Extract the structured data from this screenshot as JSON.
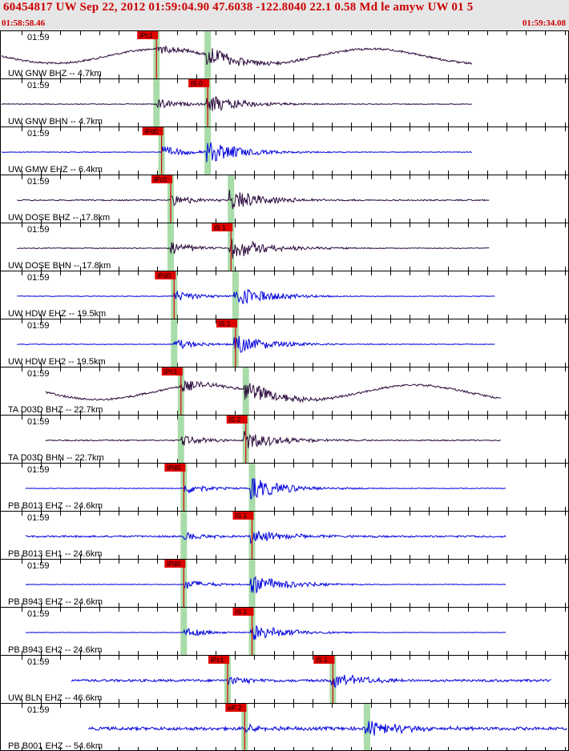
{
  "header": {
    "title": "60454817 UW Sep 22, 2012 01:59:04.90   47.6038 -122.8040 22.1 0.58 Md le amyw UW 01    5",
    "start_time": "01:58:58.46",
    "end_time": "01:59:34.08"
  },
  "colors": {
    "header_bg": "#e6e6e6",
    "title": "#cc0000",
    "trace_dark": "#2b0a3d",
    "trace_blue": "#0000dd",
    "pick": "#dd0000",
    "window": "#a8dca8"
  },
  "panels": [
    {
      "time": "01:59",
      "label": "UW GNW BHZ -- 4.7km",
      "color": "dark",
      "arrival": 0.6,
      "amp": 0.55,
      "noise": 0.25,
      "long_wave": true,
      "trace_start": 0.0,
      "trace_end": 0.83,
      "pick": "iPc1",
      "pick_pos": 0.58,
      "win": [
        0.275,
        0.365
      ]
    },
    {
      "time": "01:59",
      "label": "UW GNW BHN -- 4.7km",
      "color": "dark",
      "arrival": 0.61,
      "amp": 0.55,
      "noise": 0.1,
      "long_wave": false,
      "trace_start": 0.0,
      "trace_end": 0.83,
      "pick": "iS 0",
      "pick_pos": 0.65,
      "win": [
        0.275,
        0.365
      ]
    },
    {
      "time": "01:59",
      "label": "UW GMW EHZ -- 6.4km",
      "color": "blue",
      "arrival": 0.61,
      "amp": 0.65,
      "noise": 0.08,
      "long_wave": false,
      "trace_start": 0.0,
      "trace_end": 0.83,
      "pick": "iPd0",
      "pick_pos": 0.57,
      "win": [
        0.284,
        0.365
      ]
    },
    {
      "time": "01:59",
      "label": "UW DOSE BHZ -- 17.8km",
      "color": "dark",
      "arrival": 0.7,
      "amp": 0.6,
      "noise": 0.15,
      "long_wave": false,
      "trace_start": 0.03,
      "trace_end": 0.86,
      "pick": "iPc0",
      "pick_pos": 0.56,
      "win": [
        0.3,
        0.406
      ]
    },
    {
      "time": "01:59",
      "label": "UW DOSE BHN -- 17.8km",
      "color": "dark",
      "arrival": 0.7,
      "amp": 0.65,
      "noise": 0.1,
      "long_wave": false,
      "trace_start": 0.03,
      "trace_end": 0.86,
      "pick": "iS 1",
      "pick_pos": 0.7,
      "win": [
        0.3,
        0.406
      ]
    },
    {
      "time": "01:59",
      "label": "UW HDW EHZ -- 19.5km",
      "color": "blue",
      "arrival": 0.73,
      "amp": 0.6,
      "noise": 0.08,
      "long_wave": false,
      "trace_start": 0.03,
      "trace_end": 0.87,
      "pick": "iPd0",
      "pick_pos": 0.58,
      "win": [
        0.306,
        0.414
      ]
    },
    {
      "time": "01:59",
      "label": "UW HDW EH2 -- 19.5km",
      "color": "blue",
      "arrival": 0.73,
      "amp": 0.55,
      "noise": 0.08,
      "long_wave": false,
      "trace_start": 0.03,
      "trace_end": 0.87,
      "pick": "iS 1",
      "pick_pos": 0.72,
      "win": [
        0.306,
        0.414
      ]
    },
    {
      "time": "01:59",
      "label": "TA D03D BHZ -- 22.7km",
      "color": "dark",
      "arrival": 0.75,
      "amp": 0.6,
      "noise": 0.25,
      "long_wave": true,
      "trace_start": 0.08,
      "trace_end": 0.88,
      "pick": "iPc1",
      "pick_pos": 0.59,
      "win": [
        0.318,
        0.432
      ]
    },
    {
      "time": "01:59",
      "label": "TA D03D BHN -- 22.7km",
      "color": "dark",
      "arrival": 0.75,
      "amp": 0.55,
      "noise": 0.15,
      "long_wave": false,
      "trace_start": 0.08,
      "trace_end": 0.88,
      "pick": "iS 2",
      "pick_pos": 0.73,
      "win": [
        0.318,
        0.432
      ]
    },
    {
      "time": "01:59",
      "label": "PB B013 EHZ -- 24.6km",
      "color": "blue",
      "arrival": 0.77,
      "amp": 0.6,
      "noise": 0.08,
      "long_wave": false,
      "trace_start": 0.045,
      "trace_end": 0.89,
      "pick": "iPd0",
      "pick_pos": 0.59,
      "win": [
        0.323,
        0.443
      ]
    },
    {
      "time": "01:59",
      "label": "PB B013 EH1 -- 24.6km",
      "color": "blue",
      "arrival": 0.77,
      "amp": 0.4,
      "noise": 0.22,
      "long_wave": false,
      "trace_start": 0.045,
      "trace_end": 0.89,
      "pick": "iS 1",
      "pick_pos": 0.74,
      "win": [
        0.323,
        0.443
      ]
    },
    {
      "time": "01:59",
      "label": "PB B943 EHZ -- 24.6km",
      "color": "blue",
      "arrival": 0.77,
      "amp": 0.55,
      "noise": 0.08,
      "long_wave": false,
      "trace_start": 0.045,
      "trace_end": 0.89,
      "pick": "iPd0",
      "pick_pos": 0.59,
      "win": [
        0.323,
        0.443
      ]
    },
    {
      "time": "01:59",
      "label": "PB B943 EH2 -- 24.6km",
      "color": "blue",
      "arrival": 0.77,
      "amp": 0.5,
      "noise": 0.05,
      "long_wave": false,
      "trace_start": 0.045,
      "trace_end": 0.89,
      "pick": "iS 1",
      "pick_pos": 0.74,
      "win": [
        0.323,
        0.443
      ]
    },
    {
      "time": "01:59",
      "label": "UW BLN EHZ -- 46.6km",
      "color": "blue",
      "arrival": 0.86,
      "amp": 0.45,
      "noise": 0.3,
      "long_wave": false,
      "trace_start": 0.125,
      "trace_end": 0.97,
      "pick": "iPc1",
      "pick_pos": 0.6,
      "pick2": "iS 1",
      "pick2_pos": 0.76,
      "win": [
        0.4,
        0.585
      ]
    },
    {
      "time": "01:59",
      "label": "PB B001 EHZ -- 54.6km",
      "color": "blue",
      "arrival": 0.97,
      "amp": 0.45,
      "noise": 0.4,
      "long_wave": false,
      "trace_start": 0.155,
      "trace_end": 1.0,
      "pick": "eP 2",
      "pick_pos": 0.62,
      "win": [
        0.43,
        0.645
      ]
    }
  ]
}
